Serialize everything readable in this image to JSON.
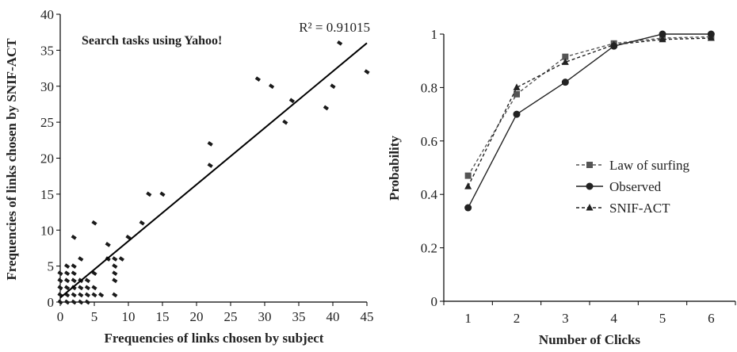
{
  "chart_data": [
    {
      "type": "scatter",
      "title": "",
      "annotation": "Search tasks using Yahoo!",
      "r2_label": "R² = 0.91015",
      "xlabel": "Frequencies of links chosen by subject",
      "ylabel": "Frequencies of links chosen by SNIF-ACT",
      "xlim": [
        0,
        45
      ],
      "ylim": [
        0,
        40
      ],
      "xticks": [
        "0",
        "5",
        "10",
        "15",
        "20",
        "25",
        "30",
        "35",
        "40",
        "45"
      ],
      "yticks": [
        "0",
        "5",
        "10",
        "15",
        "20",
        "25",
        "30",
        "35",
        "40"
      ],
      "points": [
        [
          0,
          0
        ],
        [
          0,
          1
        ],
        [
          0,
          2
        ],
        [
          0,
          3
        ],
        [
          0,
          4
        ],
        [
          1,
          0
        ],
        [
          1,
          1
        ],
        [
          1,
          2
        ],
        [
          1,
          3
        ],
        [
          1,
          4
        ],
        [
          1,
          5
        ],
        [
          2,
          0
        ],
        [
          2,
          1
        ],
        [
          2,
          2
        ],
        [
          2,
          3
        ],
        [
          2,
          4
        ],
        [
          2,
          5
        ],
        [
          2,
          9
        ],
        [
          3,
          0
        ],
        [
          3,
          1
        ],
        [
          3,
          2
        ],
        [
          3,
          3
        ],
        [
          3,
          6
        ],
        [
          4,
          0
        ],
        [
          4,
          1
        ],
        [
          4,
          2
        ],
        [
          4,
          3
        ],
        [
          5,
          1
        ],
        [
          5,
          2
        ],
        [
          5,
          4
        ],
        [
          5,
          11
        ],
        [
          6,
          1
        ],
        [
          7,
          6
        ],
        [
          7,
          8
        ],
        [
          8,
          1
        ],
        [
          8,
          3
        ],
        [
          8,
          4
        ],
        [
          8,
          5
        ],
        [
          8,
          6
        ],
        [
          9,
          6
        ],
        [
          10,
          9
        ],
        [
          12,
          11
        ],
        [
          13,
          15
        ],
        [
          15,
          15
        ],
        [
          22,
          19
        ],
        [
          22,
          22
        ],
        [
          29,
          31
        ],
        [
          31,
          30
        ],
        [
          33,
          25
        ],
        [
          34,
          28
        ],
        [
          39,
          27
        ],
        [
          40,
          30
        ],
        [
          41,
          36
        ],
        [
          45,
          32
        ]
      ],
      "fit_line": {
        "x": [
          0,
          45
        ],
        "y": [
          0.6,
          36
        ]
      }
    },
    {
      "type": "line",
      "title": "",
      "xlabel": "Number of Clicks",
      "ylabel": "Probability",
      "x": [
        1,
        2,
        3,
        4,
        5,
        6
      ],
      "xlim": [
        0.5,
        6.5
      ],
      "ylim": [
        0,
        1
      ],
      "xticks": [
        "1",
        "2",
        "3",
        "4",
        "5",
        "6"
      ],
      "yticks": [
        "0",
        "0.2",
        "0.4",
        "0.6",
        "0.8",
        "1"
      ],
      "legend_position": "center-right",
      "series": [
        {
          "name": "Law of surfing",
          "values": [
            0.47,
            0.775,
            0.915,
            0.965,
            0.985,
            0.99
          ],
          "marker": "square",
          "dash": "4,3",
          "color": "#555555"
        },
        {
          "name": "Observed",
          "values": [
            0.35,
            0.7,
            0.82,
            0.955,
            1.0,
            1.0
          ],
          "marker": "circle",
          "dash": "none",
          "color": "#222222"
        },
        {
          "name": "SNIF-ACT",
          "values": [
            0.43,
            0.8,
            0.895,
            0.96,
            0.98,
            0.985
          ],
          "marker": "triangle",
          "dash": "4,3",
          "color": "#222222"
        }
      ]
    }
  ]
}
